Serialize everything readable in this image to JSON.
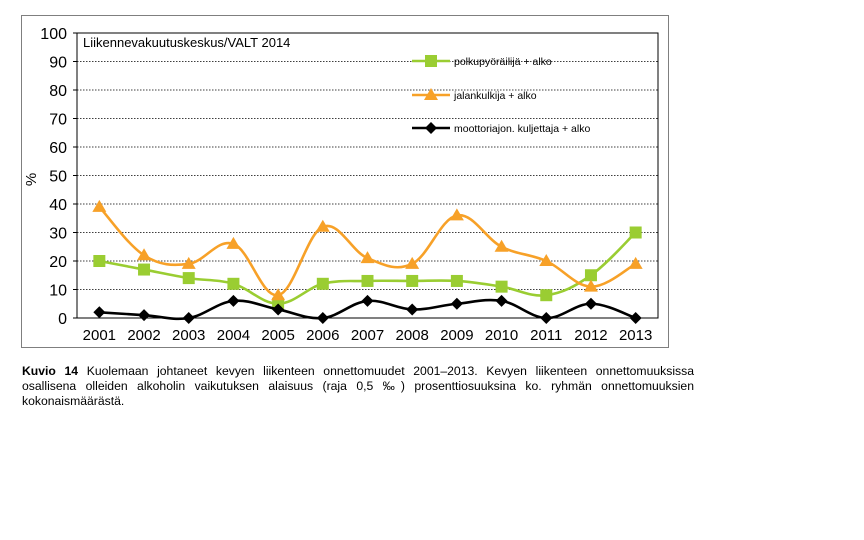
{
  "chart_data": {
    "type": "line",
    "source_label": "Liikennevakuutuskeskus/VALT 2014",
    "ylabel": "%",
    "ylim": [
      0,
      100
    ],
    "yticks": [
      0,
      10,
      20,
      30,
      40,
      50,
      60,
      70,
      80,
      90,
      100
    ],
    "categories": [
      "2001",
      "2002",
      "2003",
      "2004",
      "2005",
      "2006",
      "2007",
      "2008",
      "2009",
      "2010",
      "2011",
      "2012",
      "2013"
    ],
    "series": [
      {
        "name": "polkupyöräilijä + alko",
        "color": "#9acd32",
        "marker": "square",
        "values": [
          20,
          17,
          14,
          12,
          5,
          12,
          13,
          13,
          13,
          11,
          8,
          15,
          30
        ]
      },
      {
        "name": "jalankulkija + alko",
        "color": "#f7a128",
        "marker": "triangle",
        "values": [
          39,
          22,
          19,
          26,
          8,
          32,
          21,
          19,
          36,
          25,
          20,
          11,
          19
        ]
      },
      {
        "name": "moottoriajon. kuljettaja + alko",
        "color": "#000000",
        "marker": "diamond",
        "values": [
          2,
          1,
          0,
          6,
          3,
          0,
          6,
          3,
          5,
          6,
          0,
          5,
          0
        ]
      }
    ]
  },
  "caption": {
    "label": "Kuvio 14",
    "text": "Kuolemaan johtaneet kevyen liikenteen onnettomuudet 2001–2013. Kevyen liikenteen onnettomuuksissa osallisena olleiden alkoholin vaikutuksen alaisuus (raja 0,5 ‰) prosenttiosuuksina ko. ryhmän onnettomuuksien kokonaismäärästä."
  }
}
